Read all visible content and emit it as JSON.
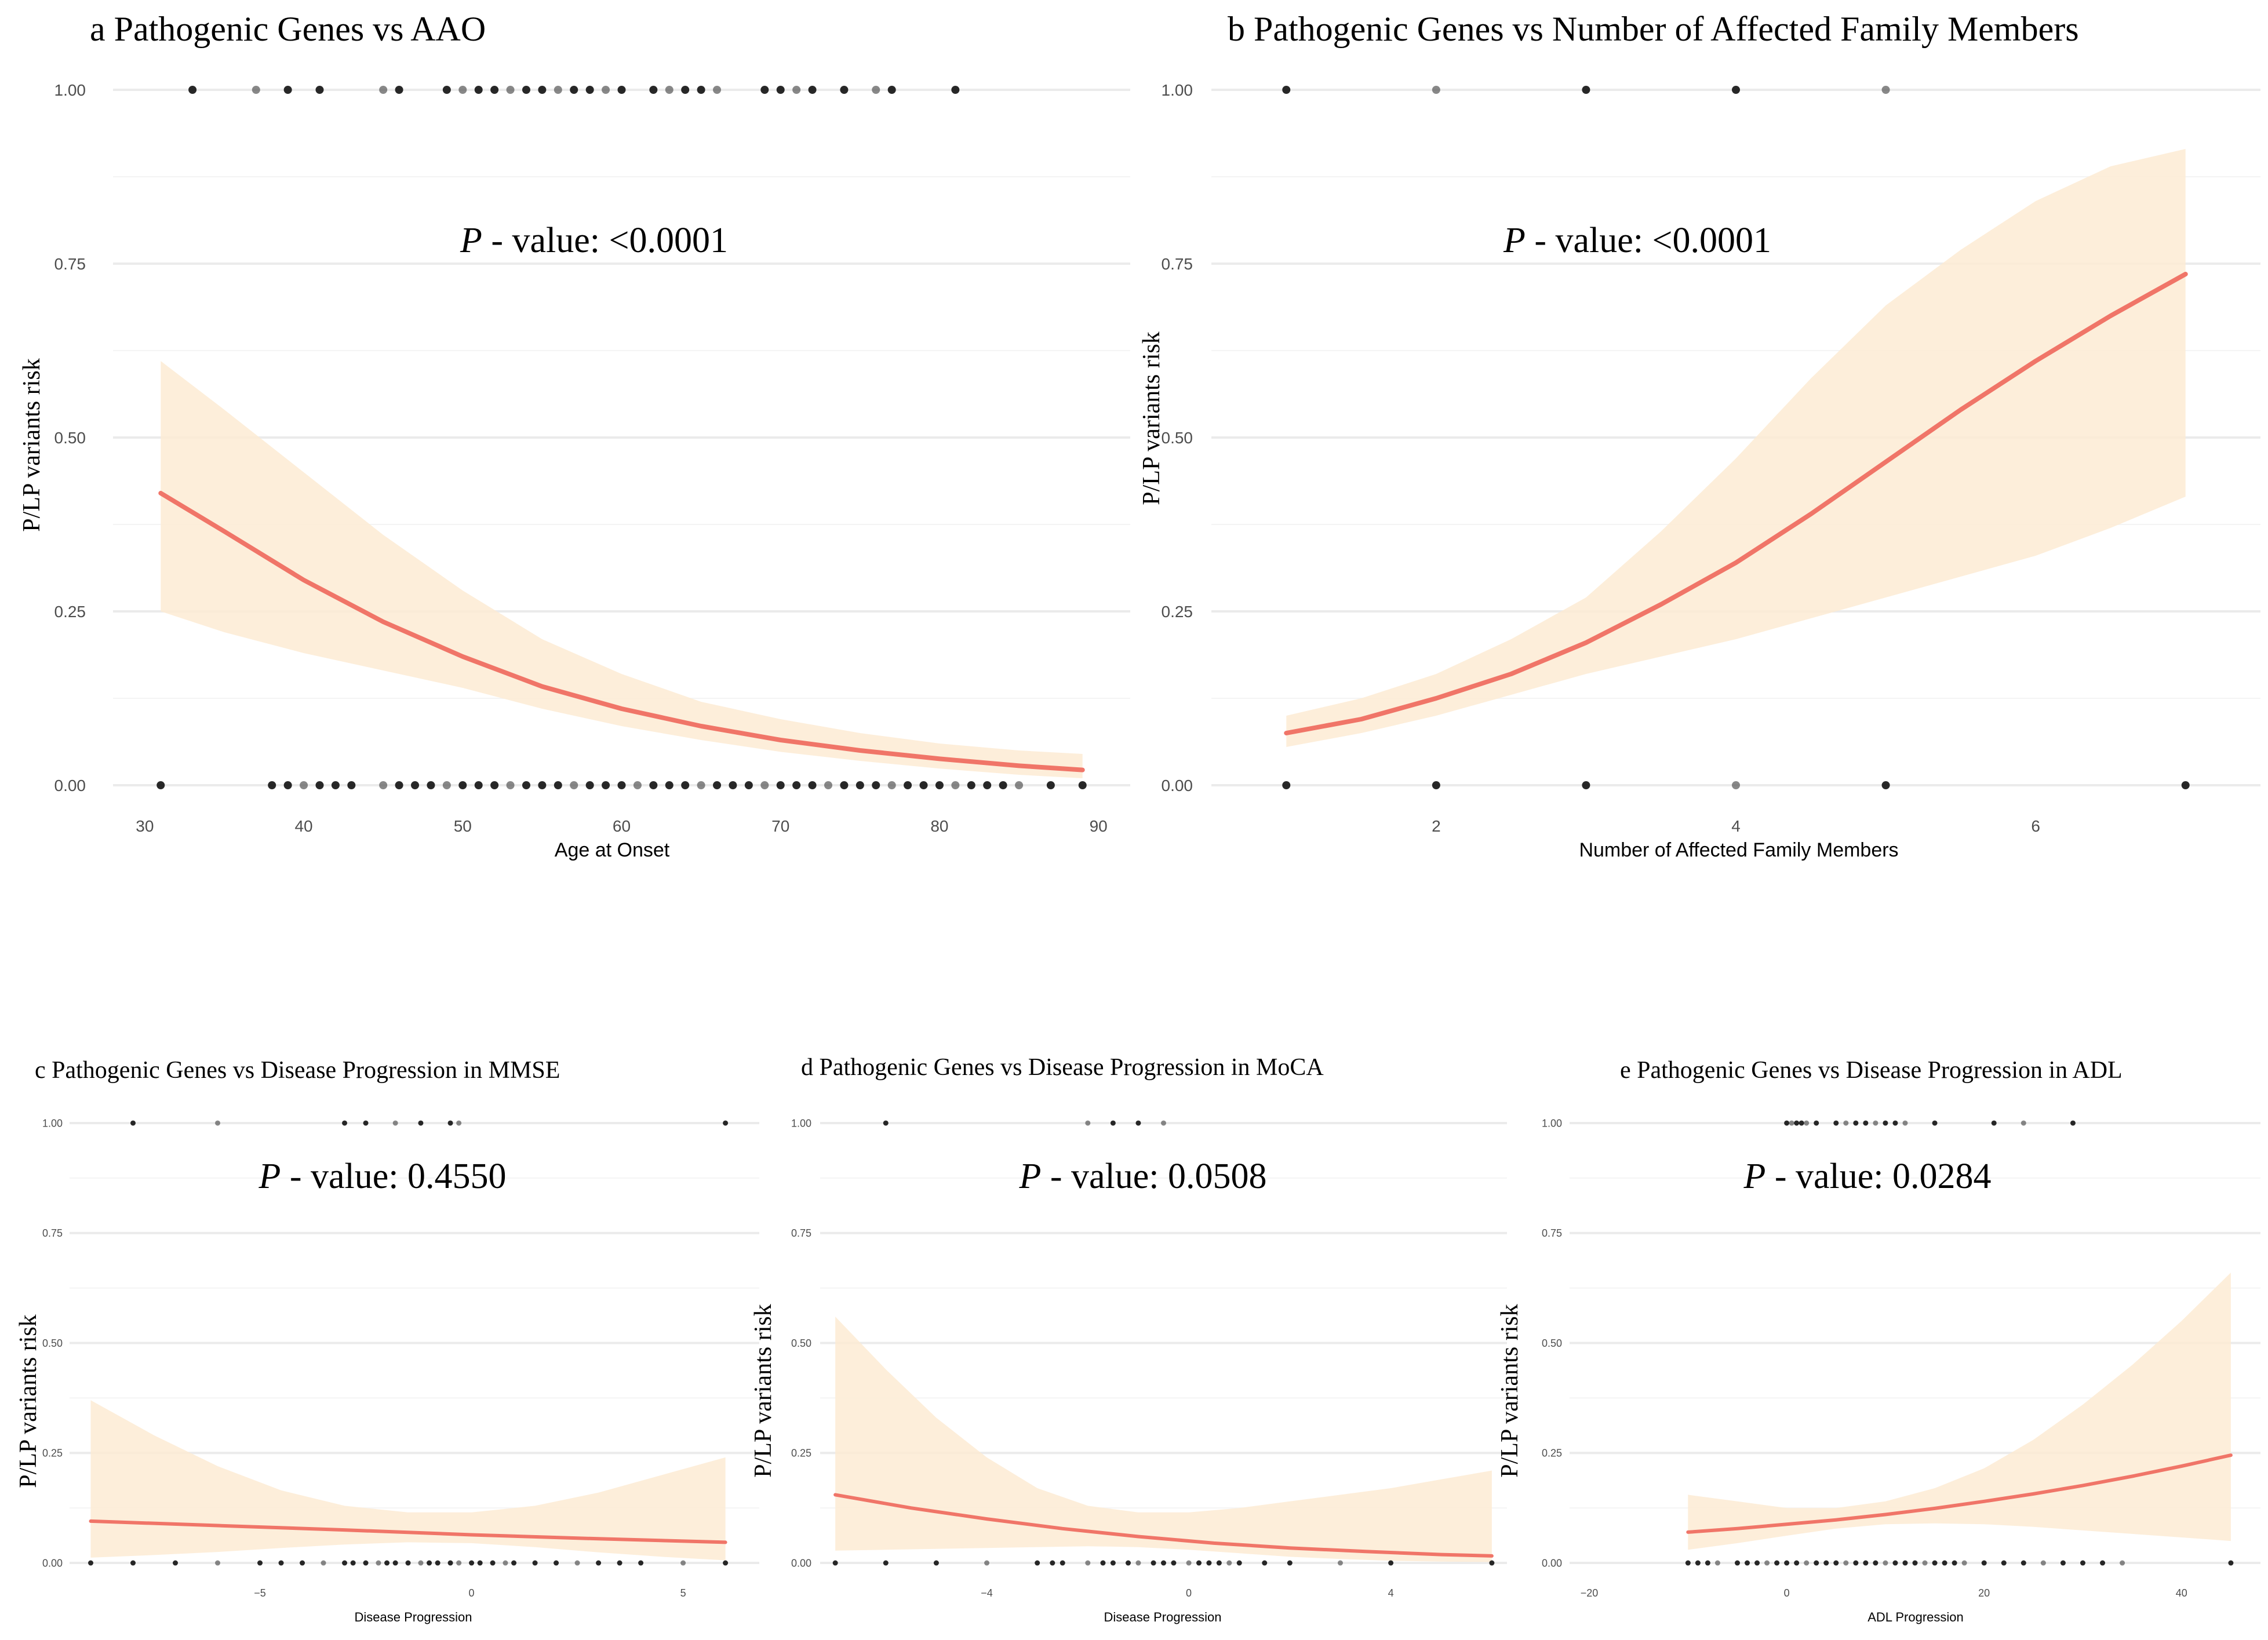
{
  "chart_data": [
    {
      "id": "a",
      "type": "scatter",
      "title": "a  Pathogenic Genes  vs  AAO",
      "p_label": "P",
      "p_text": " - value: <0.0001",
      "xlabel": "Age at Onset",
      "ylabel": "P/LP variants risk",
      "xlim": [
        28,
        92
      ],
      "ylim": [
        -0.05,
        1.05
      ],
      "xticks": [
        30,
        40,
        50,
        60,
        70,
        80,
        90
      ],
      "xtick_labels": [
        "30",
        "40",
        "50",
        "60",
        "70",
        "80",
        "90"
      ],
      "yticks": [
        0,
        0.25,
        0.5,
        0.75,
        1
      ],
      "ytick_labels": [
        "0.00",
        "0.25",
        "0.50",
        "0.75",
        "1.00"
      ],
      "points_y1": [
        33,
        37,
        39,
        41,
        45,
        46,
        49,
        50,
        51,
        52,
        53,
        54,
        55,
        56,
        57,
        58,
        59,
        60,
        62,
        63,
        64,
        65,
        66,
        69,
        70,
        71,
        72,
        74,
        76,
        77,
        81
      ],
      "points_y0": [
        31,
        38,
        39,
        40,
        41,
        42,
        43,
        45,
        46,
        47,
        48,
        49,
        50,
        51,
        52,
        53,
        54,
        55,
        56,
        57,
        58,
        59,
        60,
        61,
        62,
        63,
        64,
        65,
        66,
        67,
        68,
        69,
        70,
        71,
        72,
        73,
        74,
        75,
        76,
        77,
        78,
        79,
        80,
        81,
        82,
        83,
        84,
        85,
        87,
        89
      ],
      "fit": {
        "x": [
          31,
          35,
          40,
          45,
          50,
          55,
          60,
          65,
          70,
          75,
          80,
          85,
          89
        ],
        "y": [
          0.42,
          0.365,
          0.295,
          0.235,
          0.185,
          0.142,
          0.11,
          0.085,
          0.065,
          0.05,
          0.038,
          0.028,
          0.022
        ]
      },
      "ci": {
        "x": [
          31,
          35,
          40,
          45,
          50,
          55,
          60,
          65,
          70,
          75,
          80,
          85,
          89
        ],
        "lo": [
          0.25,
          0.22,
          0.19,
          0.165,
          0.14,
          0.11,
          0.085,
          0.065,
          0.048,
          0.035,
          0.024,
          0.015,
          0.01
        ],
        "hi": [
          0.61,
          0.54,
          0.45,
          0.36,
          0.28,
          0.21,
          0.16,
          0.12,
          0.095,
          0.075,
          0.06,
          0.05,
          0.045
        ]
      }
    },
    {
      "id": "b",
      "type": "scatter",
      "title": "b  Pathogenic Genes  vs  Number of Affected Family Members",
      "p_label": "P",
      "p_text": " - value: <0.0001",
      "xlabel": "Number of Affected Family Members",
      "ylabel": "P/LP variants risk",
      "xlim": [
        0.5,
        7.5
      ],
      "ylim": [
        -0.05,
        1.05
      ],
      "xticks": [
        2,
        4,
        6
      ],
      "xtick_labels": [
        "2",
        "4",
        "6"
      ],
      "yticks": [
        0,
        0.25,
        0.5,
        0.75,
        1
      ],
      "ytick_labels": [
        "0.00",
        "0.25",
        "0.50",
        "0.75",
        "1.00"
      ],
      "points_y1": [
        1,
        2,
        3,
        4,
        5
      ],
      "points_y0": [
        1,
        2,
        3,
        4,
        5,
        7
      ],
      "fit": {
        "x": [
          1,
          1.5,
          2,
          2.5,
          3,
          3.5,
          4,
          4.5,
          5,
          5.5,
          6,
          6.5,
          7
        ],
        "y": [
          0.075,
          0.095,
          0.125,
          0.16,
          0.205,
          0.26,
          0.32,
          0.39,
          0.465,
          0.54,
          0.61,
          0.675,
          0.735
        ]
      },
      "ci": {
        "x": [
          1,
          1.5,
          2,
          2.5,
          3,
          3.5,
          4,
          4.5,
          5,
          5.5,
          6,
          6.5,
          7
        ],
        "lo": [
          0.055,
          0.075,
          0.1,
          0.13,
          0.16,
          0.185,
          0.21,
          0.24,
          0.27,
          0.3,
          0.33,
          0.37,
          0.415
        ],
        "hi": [
          0.1,
          0.125,
          0.16,
          0.21,
          0.27,
          0.365,
          0.47,
          0.585,
          0.69,
          0.77,
          0.84,
          0.89,
          0.915
        ]
      }
    },
    {
      "id": "c",
      "type": "scatter",
      "title": "c  Pathogenic Genes  vs  Disease Progression  in  MMSE",
      "p_label": "P",
      "p_text": " - value: 0.4550",
      "xlabel": "Disease Progression",
      "ylabel": "P/LP variants risk",
      "xlim": [
        -9.5,
        6.8
      ],
      "ylim": [
        -0.05,
        1.05
      ],
      "xticks": [
        -5,
        0,
        5
      ],
      "xtick_labels": [
        "−5",
        "0",
        "5"
      ],
      "yticks": [
        0,
        0.25,
        0.5,
        0.75,
        1
      ],
      "ytick_labels": [
        "0.00",
        "0.25",
        "0.50",
        "0.75",
        "1.00"
      ],
      "points_y1": [
        -8,
        -6,
        -3,
        -2.5,
        -1.8,
        -1.2,
        -0.5,
        -0.3,
        6
      ],
      "points_y0": [
        -9,
        -8,
        -7,
        -6,
        -5,
        -4.5,
        -4,
        -3.5,
        -3,
        -2.8,
        -2.5,
        -2.2,
        -2,
        -1.8,
        -1.5,
        -1.2,
        -1,
        -0.8,
        -0.5,
        -0.3,
        0,
        0.2,
        0.5,
        0.8,
        1,
        1.5,
        2,
        2.5,
        3,
        3.5,
        4,
        5,
        6
      ],
      "fit": {
        "x": [
          -9,
          -6,
          -3,
          0,
          3,
          6
        ],
        "y": [
          0.095,
          0.085,
          0.075,
          0.064,
          0.055,
          0.047
        ]
      },
      "ci": {
        "x": [
          -9,
          -7.5,
          -6,
          -4.5,
          -3,
          -1.5,
          0,
          1.5,
          3,
          4.5,
          6
        ],
        "lo": [
          0.012,
          0.018,
          0.025,
          0.034,
          0.042,
          0.047,
          0.045,
          0.036,
          0.024,
          0.014,
          0.006
        ],
        "hi": [
          0.37,
          0.29,
          0.22,
          0.165,
          0.13,
          0.115,
          0.115,
          0.13,
          0.16,
          0.2,
          0.24
        ]
      }
    },
    {
      "id": "d",
      "type": "scatter",
      "title": "d  Pathogenic Genes  vs  Disease Progression  in  MoCA",
      "p_label": "P",
      "p_text": " - value: 0.0508",
      "xlabel": "Disease Progression",
      "ylabel": "P/LP variants risk",
      "xlim": [
        -7.3,
        6.3
      ],
      "ylim": [
        -0.05,
        1.05
      ],
      "xticks": [
        -4,
        0,
        4
      ],
      "xtick_labels": [
        "−4",
        "0",
        "4"
      ],
      "yticks": [
        0,
        0.25,
        0.5,
        0.75,
        1
      ],
      "ytick_labels": [
        "0.00",
        "0.25",
        "0.50",
        "0.75",
        "1.00"
      ],
      "points_y1": [
        -6,
        -2,
        -1.5,
        -1,
        -0.5
      ],
      "points_y0": [
        -7,
        -6,
        -5,
        -4,
        -3,
        -2.7,
        -2.5,
        -2,
        -1.7,
        -1.5,
        -1.2,
        -1,
        -0.7,
        -0.5,
        -0.3,
        0,
        0.2,
        0.4,
        0.6,
        0.8,
        1,
        1.5,
        2,
        3,
        4,
        6
      ],
      "fit": {
        "x": [
          -7,
          -5.5,
          -4,
          -2.5,
          -1,
          0.5,
          2,
          3.5,
          5,
          6
        ],
        "y": [
          0.155,
          0.125,
          0.1,
          0.078,
          0.06,
          0.045,
          0.034,
          0.026,
          0.019,
          0.016
        ]
      },
      "ci": {
        "x": [
          -7,
          -6,
          -5,
          -4,
          -3,
          -2,
          -1,
          0,
          1,
          2,
          3,
          4,
          5,
          6
        ],
        "lo": [
          0.028,
          0.03,
          0.032,
          0.034,
          0.036,
          0.038,
          0.036,
          0.03,
          0.022,
          0.014,
          0.009,
          0.005,
          0.003,
          0.002
        ],
        "hi": [
          0.56,
          0.44,
          0.33,
          0.24,
          0.17,
          0.13,
          0.115,
          0.115,
          0.125,
          0.14,
          0.155,
          0.17,
          0.19,
          0.21
        ]
      }
    },
    {
      "id": "e",
      "type": "scatter",
      "title": "e  Pathogenic Genes  vs  Disease Progression  in  ADL",
      "p_label": "P",
      "p_text": " - value: 0.0284",
      "xlabel": "ADL Progression",
      "ylabel": "P/LP variants risk",
      "xlim": [
        -22,
        48
      ],
      "ylim": [
        -0.05,
        1.05
      ],
      "xticks": [
        -20,
        0,
        20,
        40
      ],
      "xtick_labels": [
        "−20",
        "0",
        "20",
        "40"
      ],
      "yticks": [
        0,
        0.25,
        0.5,
        0.75,
        1
      ],
      "ytick_labels": [
        "0.00",
        "0.25",
        "0.50",
        "0.75",
        "1.00"
      ],
      "points_y1": [
        0,
        0.5,
        1,
        1.5,
        2,
        3,
        5,
        6,
        7,
        8,
        9,
        10,
        11,
        12,
        15,
        21,
        24,
        29
      ],
      "points_y0": [
        -10,
        -9,
        -8,
        -7,
        -5,
        -4,
        -3,
        -2,
        -1,
        0,
        1,
        2,
        3,
        4,
        5,
        6,
        7,
        8,
        9,
        10,
        11,
        12,
        13,
        14,
        15,
        16,
        17,
        18,
        20,
        22,
        24,
        26,
        28,
        30,
        32,
        34,
        45
      ],
      "fit": {
        "x": [
          -10,
          -5,
          0,
          5,
          10,
          15,
          20,
          25,
          30,
          35,
          40,
          45
        ],
        "y": [
          0.07,
          0.078,
          0.088,
          0.098,
          0.11,
          0.124,
          0.14,
          0.157,
          0.176,
          0.197,
          0.22,
          0.245
        ]
      },
      "ci": {
        "x": [
          -10,
          -5,
          0,
          5,
          10,
          15,
          20,
          25,
          30,
          35,
          40,
          45
        ],
        "lo": [
          0.03,
          0.045,
          0.062,
          0.078,
          0.088,
          0.09,
          0.088,
          0.082,
          0.074,
          0.066,
          0.058,
          0.05
        ],
        "hi": [
          0.155,
          0.14,
          0.125,
          0.125,
          0.14,
          0.17,
          0.215,
          0.28,
          0.36,
          0.45,
          0.55,
          0.66
        ]
      }
    }
  ]
}
